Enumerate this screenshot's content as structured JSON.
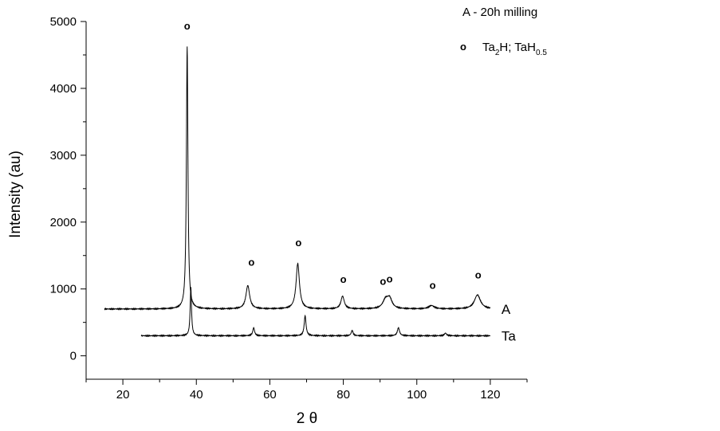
{
  "chart_data": {
    "type": "line",
    "title": "",
    "xlabel": "2 θ",
    "ylabel": "Intensity (au)",
    "xlim": [
      10,
      130
    ],
    "ylim": [
      -350,
      5000
    ],
    "x_ticks": [
      20,
      40,
      60,
      80,
      100,
      120
    ],
    "x_minor_step": 10,
    "y_ticks": [
      0,
      1000,
      2000,
      3000,
      4000,
      5000
    ],
    "y_minor_step": 500,
    "grid": false,
    "legend": {
      "title": "A - 20h milling",
      "marker_symbol": "o",
      "entry": {
        "part1": "Ta",
        "sub1": "2",
        "part2": "H; TaH",
        "sub2": "0.5"
      }
    },
    "peak_marker": "o",
    "series": [
      {
        "name": "A",
        "x_range": [
          15,
          120
        ],
        "baseline": 700,
        "peaks": [
          {
            "x": 37.5,
            "y": 4620,
            "w": 0.25
          },
          {
            "x": 54.0,
            "y": 1050,
            "w": 0.6
          },
          {
            "x": 67.6,
            "y": 1380,
            "w": 0.55
          },
          {
            "x": 79.8,
            "y": 890,
            "w": 0.55
          },
          {
            "x": 91.5,
            "y": 830,
            "w": 0.9
          },
          {
            "x": 92.6,
            "y": 840,
            "w": 0.8
          },
          {
            "x": 104.0,
            "y": 750,
            "w": 0.9
          },
          {
            "x": 116.5,
            "y": 910,
            "w": 1.0
          }
        ],
        "peak_markers": [
          {
            "x": 37.5,
            "y": 4880
          },
          {
            "x": 55.0,
            "y": 1350
          },
          {
            "x": 67.8,
            "y": 1640
          },
          {
            "x": 80.0,
            "y": 1090
          },
          {
            "x": 90.8,
            "y": 1060
          },
          {
            "x": 92.6,
            "y": 1100
          },
          {
            "x": 104.3,
            "y": 1000
          },
          {
            "x": 116.7,
            "y": 1160
          }
        ]
      },
      {
        "name": "Ta",
        "x_range": [
          25,
          120
        ],
        "baseline": 300,
        "peaks": [
          {
            "x": 38.5,
            "y": 1030,
            "w": 0.22
          },
          {
            "x": 55.6,
            "y": 420,
            "w": 0.3
          },
          {
            "x": 69.6,
            "y": 600,
            "w": 0.3
          },
          {
            "x": 82.4,
            "y": 380,
            "w": 0.3
          },
          {
            "x": 95.0,
            "y": 420,
            "w": 0.35
          },
          {
            "x": 107.8,
            "y": 340,
            "w": 0.35
          }
        ]
      }
    ]
  }
}
